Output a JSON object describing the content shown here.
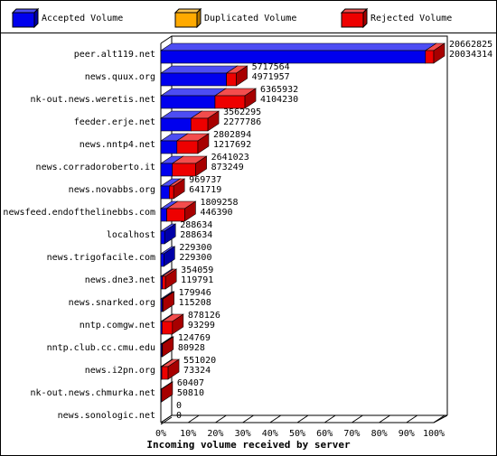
{
  "chart_data": {
    "type": "bar3d",
    "x_label": "Incoming volume received by server",
    "categories": [
      "peer.alt119.net",
      "news.quux.org",
      "nk-out.news.weretis.net",
      "feeder.erje.net",
      "news.nntp4.net",
      "news.corradoroberto.it",
      "news.novabbs.org",
      "newsfeed.endofthelinebbs.com",
      "localhost",
      "news.trigofacile.com",
      "news.dne3.net",
      "news.snarked.org",
      "nntp.comgw.net",
      "nntp.club.cc.cmu.edu",
      "news.i2pn.org",
      "nk-out.news.chmurka.net",
      "news.sonologic.net"
    ],
    "totals": [
      20662825,
      5717564,
      6365932,
      3562295,
      2802894,
      2641023,
      969737,
      1809258,
      288634,
      229300,
      354059,
      179946,
      878126,
      124769,
      551020,
      60407,
      0
    ],
    "series": [
      {
        "name": "Accepted Volume",
        "color": "#0000ee",
        "values": [
          20034314,
          4971957,
          4104230,
          2277786,
          1217692,
          873249,
          641719,
          446390,
          288634,
          229300,
          119791,
          115208,
          93299,
          80928,
          73324,
          50810,
          0
        ]
      },
      {
        "name": "Duplicated Volume",
        "color": "#ffaa00"
      },
      {
        "name": "Rejected Volume",
        "color": "#ee0000"
      }
    ],
    "xlim": [
      0,
      100
    ],
    "xticks": [
      {
        "value": 0,
        "label": "0%"
      },
      {
        "value": 10,
        "label": "10%"
      },
      {
        "value": 20,
        "label": "20%"
      },
      {
        "value": 30,
        "label": "30%"
      },
      {
        "value": 40,
        "label": "40%"
      },
      {
        "value": 50,
        "label": "50%"
      },
      {
        "value": 60,
        "label": "60%"
      },
      {
        "value": 70,
        "label": "70%"
      },
      {
        "value": 80,
        "label": "80%"
      },
      {
        "value": 90,
        "label": "90%"
      },
      {
        "value": 100,
        "label": "100%"
      }
    ]
  }
}
